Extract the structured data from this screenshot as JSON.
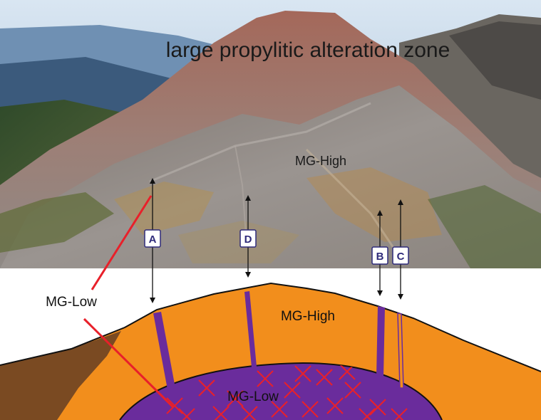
{
  "photo": {
    "title": "large propylitic alteration zone",
    "label_high": "MG-High"
  },
  "markers": [
    "A",
    "D",
    "B",
    "C"
  ],
  "callout": {
    "label": "MG-Low"
  },
  "section": {
    "label_high": "MG-High",
    "label_low": "MG-Low"
  },
  "colors": {
    "orange": "#F28E1C",
    "purple": "#6A2C9C",
    "brown": "#7A4A22",
    "red": "#E8202A",
    "marker_fill": "#ffffff",
    "marker_stroke": "#2E2A7A"
  }
}
